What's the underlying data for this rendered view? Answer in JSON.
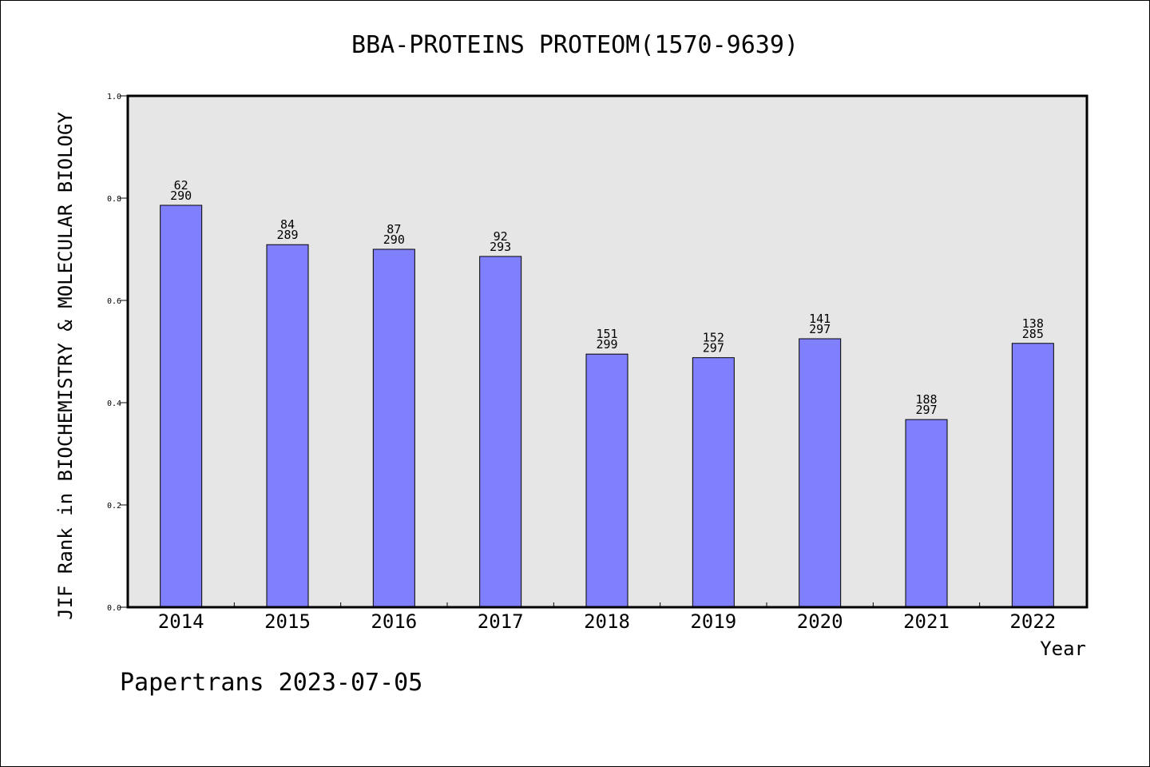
{
  "chart_data": {
    "type": "bar",
    "title": "BBA-PROTEINS PROTEOM(1570-9639)",
    "xlabel": "Year",
    "ylabel": "JIF Rank in BIOCHEMISTRY & MOLECULAR BIOLOGY",
    "ylim": [
      0,
      1.0
    ],
    "yticks": [
      "0.0",
      "0.2",
      "0.4",
      "0.6",
      "0.8",
      "1.0"
    ],
    "categories": [
      "2014",
      "2015",
      "2016",
      "2017",
      "2018",
      "2019",
      "2020",
      "2021",
      "2022"
    ],
    "values": [
      0.786,
      0.709,
      0.7,
      0.686,
      0.495,
      0.488,
      0.525,
      0.367,
      0.516
    ],
    "ranks": [
      "62",
      "84",
      "87",
      "92",
      "151",
      "152",
      "141",
      "188",
      "138"
    ],
    "totals": [
      "290",
      "289",
      "290",
      "293",
      "299",
      "297",
      "297",
      "297",
      "285"
    ],
    "bar_color": "#8080ff",
    "plot_background": "#e6e6e6",
    "grid": false,
    "legend": "none"
  },
  "footer": "Papertrans 2023-07-05"
}
